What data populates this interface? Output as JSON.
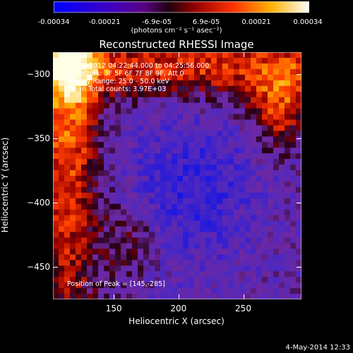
{
  "colorbar": {
    "ticks": [
      "-0.00034",
      "-0.00021",
      "-6.9e-05",
      "6.9e-05",
      "0.00021",
      "0.00034"
    ],
    "units_line": "(photons cm⁻² s⁻¹ asec⁻²)"
  },
  "plot": {
    "title": "Reconstructed RHESSI Image",
    "info_lines": [
      "13-Jul-2012 04:22:44.000 to 04:25:56.000",
      "Detectors: 3F 5F 6F 7F 8F 9F, Att 0",
      "Energy Range: 25.0 - 50.0 keV",
      "Clean    Total counts: 3.97E+03"
    ],
    "peak_text": "Position of Peak = [145,-285]"
  },
  "footer": {
    "date": "4-May-2014 12:33"
  },
  "chart_data": {
    "type": "heatmap",
    "title": "Reconstructed RHESSI Image",
    "xlabel": "Heliocentric X (arcsec)",
    "ylabel": "Heliocentric Y (arcsec)",
    "xticks": [
      150,
      200,
      250
    ],
    "yticks": [
      -300,
      -350,
      -400,
      -450
    ],
    "xlim": [
      103,
      295
    ],
    "ylim": [
      -475,
      -283
    ],
    "colorscale": "rainbow-hot (blue-purple-red-orange-yellow-white)",
    "color_range": [
      -0.00034,
      0.00034
    ],
    "peak": [
      145,
      -285
    ]
  }
}
